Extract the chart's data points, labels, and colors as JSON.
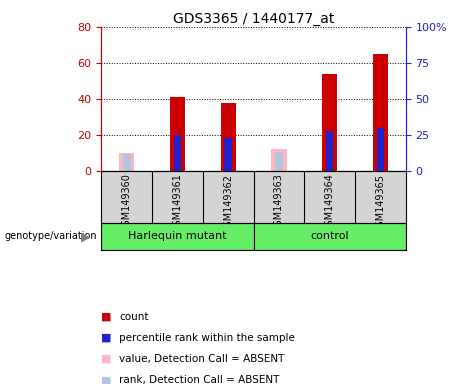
{
  "title": "GDS3365 / 1440177_at",
  "samples": [
    "GSM149360",
    "GSM149361",
    "GSM149362",
    "GSM149363",
    "GSM149364",
    "GSM149365"
  ],
  "group_labels": [
    "Harlequin mutant",
    "control"
  ],
  "absent": [
    true,
    false,
    false,
    true,
    false,
    false
  ],
  "count_values": [
    0,
    41,
    38,
    0,
    54,
    65
  ],
  "absent_count_values": [
    10,
    0,
    0,
    12,
    0,
    0
  ],
  "percentile_values": [
    0,
    25,
    23,
    0,
    28,
    30
  ],
  "absent_percentile_values": [
    12,
    0,
    0,
    13,
    0,
    0
  ],
  "left_ylim": [
    0,
    80
  ],
  "right_ylim": [
    0,
    100
  ],
  "left_yticks": [
    0,
    20,
    40,
    60,
    80
  ],
  "right_yticks": [
    0,
    25,
    50,
    75,
    100
  ],
  "right_yticklabels": [
    "0",
    "25",
    "50",
    "75",
    "100%"
  ],
  "color_count": "#cc0000",
  "color_percentile": "#2222cc",
  "color_absent_count": "#ffb6c1",
  "color_absent_rank": "#b0c4de",
  "plot_bg": "#ffffff",
  "sample_bg": "#d4d4d4",
  "group_bg": "#66ee66",
  "legend_items": [
    "count",
    "percentile rank within the sample",
    "value, Detection Call = ABSENT",
    "rank, Detection Call = ABSENT"
  ]
}
